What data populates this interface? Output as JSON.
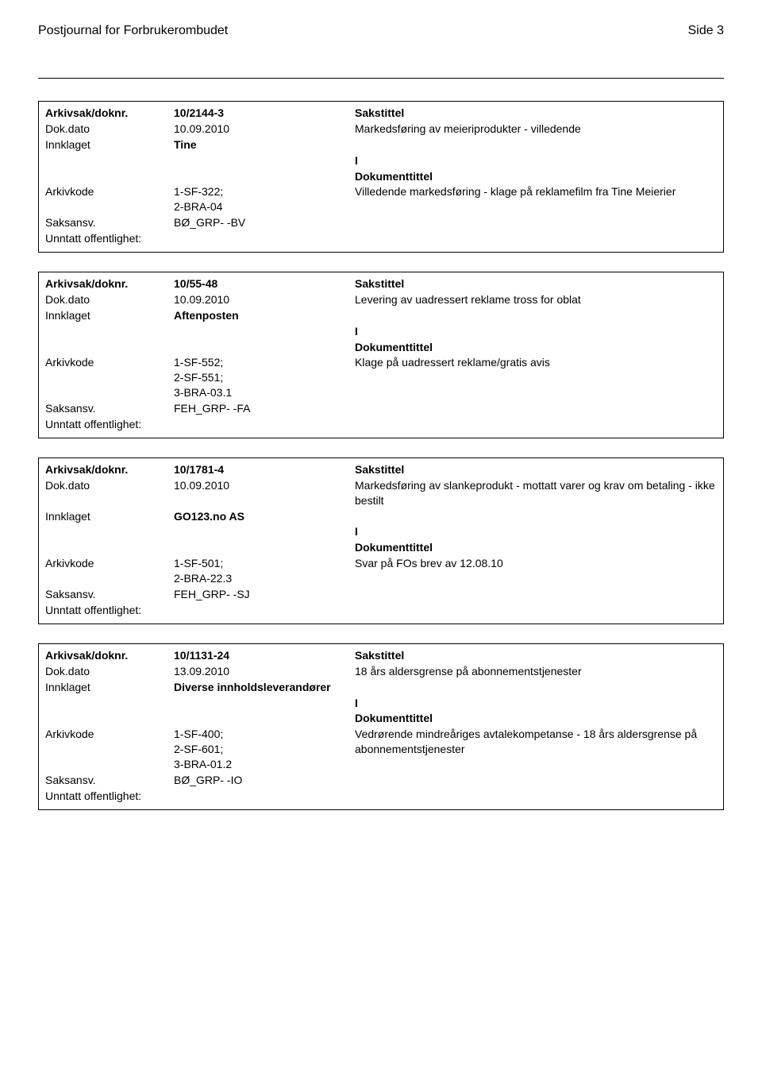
{
  "header": {
    "title": "Postjournal for Forbrukerombudet",
    "page": "Side 3"
  },
  "labels": {
    "arkivsak": "Arkivsak/doknr.",
    "dokdato": "Dok.dato",
    "innklaget": "Innklaget",
    "arkivkode": "Arkivkode",
    "saksansv": "Saksansv.",
    "unntatt": "Unntatt offentlighet:",
    "sakstittel": "Sakstittel",
    "dokumenttittel": "Dokumenttittel"
  },
  "records": [
    {
      "arkivsak": "10/2144-3",
      "dokdato": "10.09.2010",
      "sakstittel": "Markedsføring av meieriprodukter - villedende",
      "innklaget": "Tine",
      "ioflag": "I",
      "arkivkode": "1-SF-322;\n2-BRA-04",
      "dokumenttittel": "Villedende markedsføring - klage på reklamefilm fra Tine Meierier",
      "saksansv": "BØ_GRP- -BV",
      "unntatt": ""
    },
    {
      "arkivsak": "10/55-48",
      "dokdato": "10.09.2010",
      "sakstittel": "Levering av uadressert reklame tross for oblat",
      "innklaget": "Aftenposten",
      "ioflag": "I",
      "arkivkode": "1-SF-552;\n2-SF-551;\n3-BRA-03.1",
      "dokumenttittel": "Klage på uadressert reklame/gratis avis",
      "saksansv": "FEH_GRP- -FA",
      "unntatt": ""
    },
    {
      "arkivsak": "10/1781-4",
      "dokdato": "10.09.2010",
      "sakstittel": "Markedsføring av slankeprodukt - mottatt varer og krav om betaling - ikke bestilt",
      "innklaget": "GO123.no AS",
      "ioflag": "I",
      "arkivkode": "1-SF-501;\n2-BRA-22.3",
      "dokumenttittel": "Svar på FOs brev av 12.08.10",
      "saksansv": "FEH_GRP- -SJ",
      "unntatt": ""
    },
    {
      "arkivsak": "10/1131-24",
      "dokdato": "13.09.2010",
      "sakstittel": "18 års aldersgrense på abonnementstjenester",
      "innklaget": "Diverse innholdsleverandører",
      "ioflag": "I",
      "arkivkode": "1-SF-400;\n2-SF-601;\n3-BRA-01.2",
      "dokumenttittel": "Vedrørende mindreåriges avtalekompetanse - 18 års aldersgrense på abonnementstjenester",
      "saksansv": "BØ_GRP- -IO",
      "unntatt": ""
    }
  ]
}
